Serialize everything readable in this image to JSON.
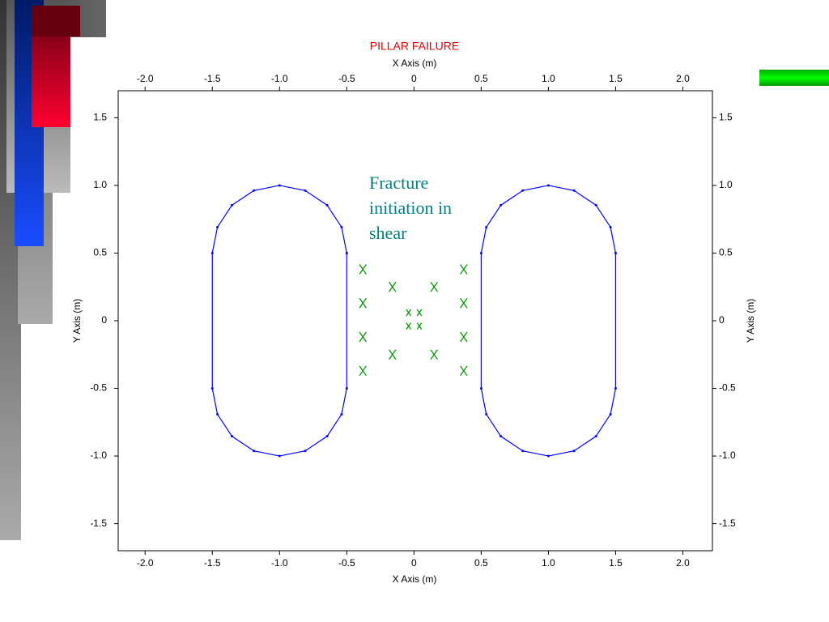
{
  "chart_data": {
    "type": "scatter",
    "title": "PILLAR FAILURE",
    "x_label": "X Axis (m)",
    "y_label": "Y Axis (m)",
    "annotation": "Fracture initiation in shear",
    "xlim": [
      -2.2,
      2.22
    ],
    "ylim": [
      -1.7,
      1.7
    ],
    "xticks": [
      {
        "value": -2,
        "label": "-2.0"
      },
      -1.5,
      {
        "value": -1,
        "label": "-1.0"
      },
      -0.5,
      0,
      0.5,
      {
        "value": 1,
        "label": "1.0"
      },
      1.5,
      {
        "value": 2,
        "label": "2.0"
      }
    ],
    "yticks": [
      1.5,
      {
        "value": 1,
        "label": "1.0"
      },
      0.5,
      0,
      -0.5,
      {
        "value": -1,
        "label": "-1.0"
      },
      -1.5
    ],
    "series": [
      {
        "type": "line",
        "color": "#0000ff",
        "x": [
          -0.5,
          -0.538,
          -0.646,
          -0.809,
          -1,
          -1.191,
          -1.354,
          -1.462,
          -1.5,
          -1.5,
          -1.462,
          -1.354,
          -1.191,
          -1,
          -0.809,
          -0.646,
          -0.538,
          -0.5,
          -0.5
        ],
        "y": [
          0.5,
          0.691,
          0.854,
          0.962,
          1,
          0.962,
          0.854,
          0.691,
          0.5,
          -0.5,
          -0.691,
          -0.854,
          -0.962,
          -1,
          -0.962,
          -0.854,
          -0.691,
          -0.5,
          0.5
        ]
      },
      {
        "type": "line",
        "color": "#0000ff",
        "x": [
          1.5,
          1.462,
          1.354,
          1.191,
          1,
          0.809,
          0.646,
          0.538,
          0.5,
          0.5,
          0.538,
          0.646,
          0.809,
          1,
          1.191,
          1.354,
          1.462,
          1.5,
          1.5
        ],
        "y": [
          0.5,
          0.691,
          0.854,
          0.962,
          1,
          0.962,
          0.854,
          0.691,
          0.5,
          -0.5,
          -0.691,
          -0.854,
          -0.962,
          -1,
          -0.962,
          -0.854,
          -0.691,
          -0.5,
          0.5
        ]
      },
      {
        "type": "scatter",
        "color": "#009900",
        "x": [
          -0.38,
          -0.38,
          -0.38,
          -0.38,
          -0.16,
          0.15,
          -0.16,
          0.15,
          0.37,
          0.37,
          0.37,
          0.37,
          -0.04,
          0.04,
          -0.04,
          0.04
        ],
        "y": [
          0.38,
          0.13,
          -0.12,
          -0.37,
          0.25,
          0.25,
          -0.25,
          -0.25,
          0.38,
          0.13,
          -0.12,
          -0.37,
          0.06,
          0.06,
          -0.04,
          -0.04
        ]
      }
    ]
  }
}
